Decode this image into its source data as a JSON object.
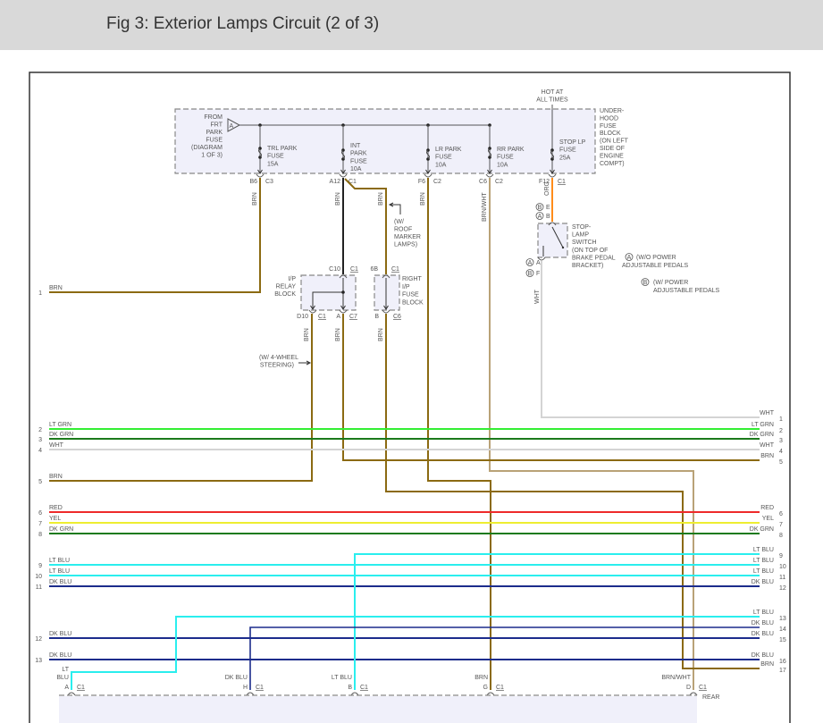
{
  "header": {
    "title": "Fig 3: Exterior Lamps Circuit (2 of 3)"
  },
  "colors": {
    "BRN": "#8b6a12",
    "BRN_WHT": "#b9a277",
    "LT_GRN": "#33ee33",
    "DK_GRN": "#1b7a1b",
    "WHT": "#d4d4d4",
    "RED": "#ee2a2a",
    "YEL": "#eeee30",
    "LT_BLU": "#2aeeee",
    "DK_BLU": "#1c2c8c",
    "ORG": "#ff8c1a",
    "BLK": "#222222",
    "block_fill": "#f0f0fa"
  },
  "fuse_block": {
    "from_label": [
      "FROM",
      "FRT",
      "PARK",
      "FUSE",
      "(DIAGRAM",
      "1 OF 3)"
    ],
    "from_connector": "A",
    "hot": [
      "HOT AT",
      "ALL TIMES"
    ],
    "block_label": [
      "UNDER-",
      "HOOD",
      "FUSE",
      "BLOCK",
      "(ON LEFT",
      "SIDE OF",
      "ENGINE",
      "COMPT)"
    ],
    "fuses": [
      {
        "label": [
          "TRL PARK",
          "FUSE",
          "15A"
        ],
        "pin": "B6",
        "conn": "C3",
        "wire": "BRN"
      },
      {
        "label": [
          "INT",
          "PARK",
          "FUSE",
          "10A"
        ],
        "pin": "A12",
        "conn": "C1",
        "wire": "BRN"
      },
      {
        "label": [
          "LR PARK",
          "FUSE",
          "10A"
        ],
        "pin": "F6",
        "conn": "C2",
        "wire": "BRN"
      },
      {
        "label": [
          "RR PARK",
          "FUSE",
          "10A"
        ],
        "pin": "C6",
        "conn": "C2",
        "wire": "BRN/WHT"
      },
      {
        "label": [
          "STOP LP",
          "FUSE",
          "25A"
        ],
        "pin": "F12",
        "conn": "C1",
        "wire": "ORG"
      }
    ]
  },
  "roof_note": [
    "(W/",
    "ROOF",
    "MARKER",
    "LAMPS)"
  ],
  "roof_wire": "BRN",
  "relay_block": {
    "label": [
      "I/P",
      "RELAY",
      "BLOCK"
    ],
    "in_pin": "C10",
    "in_conn": "C1",
    "out1_pin": "D10",
    "out1_conn": "C1",
    "out2_pin": "A",
    "out2_conn": "C7",
    "out1_wire": "BRN",
    "out2_wire": "BRN"
  },
  "right_ip_block": {
    "label": [
      "RIGHT",
      "I/P",
      "FUSE",
      "BLOCK"
    ],
    "in_pin": "6B",
    "in_conn": "C1",
    "out_pin": "B",
    "out_conn": "C6",
    "out_wire": "BRN"
  },
  "four_wheel_note": [
    "(W/ 4-WHEEL",
    "STEERING)"
  ],
  "stop_switch": {
    "label": [
      "STOP-",
      "LAMP",
      "SWITCH",
      "(ON TOP OF",
      "BRAKE PEDAL",
      "BRACKET)"
    ],
    "in_pins": [
      {
        "circle": "B",
        "pin": "E"
      },
      {
        "circle": "A",
        "pin": "B"
      }
    ],
    "out_pins": [
      {
        "circle": "A",
        "pin": "A"
      },
      {
        "circle": "B",
        "pin": "F"
      }
    ],
    "out_wire": "WHT"
  },
  "legend": [
    {
      "circle": "A",
      "lines": [
        "(W/O POWER",
        "ADJUSTABLE PEDALS"
      ]
    },
    {
      "circle": "B",
      "lines": [
        "(W/ POWER",
        "ADJUSTABLE PEDALS"
      ]
    }
  ],
  "left_wires": [
    {
      "num": "1",
      "label": "BRN"
    },
    {
      "num": "2",
      "label": "LT GRN"
    },
    {
      "num": "3",
      "label": "DK GRN"
    },
    {
      "num": "4",
      "label": "WHT"
    },
    {
      "num": "5",
      "label": "BRN"
    },
    {
      "num": "6",
      "label": "RED"
    },
    {
      "num": "7",
      "label": "YEL"
    },
    {
      "num": "8",
      "label": "DK GRN"
    },
    {
      "num": "9",
      "label": "LT BLU"
    },
    {
      "num": "10",
      "label": "LT BLU"
    },
    {
      "num": "11",
      "label": "DK BLU"
    },
    {
      "num": "12",
      "label": "DK BLU"
    },
    {
      "num": "13",
      "label": "DK BLU"
    }
  ],
  "right_wires": [
    {
      "num": "1",
      "label": "WHT"
    },
    {
      "num": "2",
      "label": "LT GRN"
    },
    {
      "num": "3",
      "label": "DK GRN"
    },
    {
      "num": "4",
      "label": "WHT"
    },
    {
      "num": "5",
      "label": "BRN"
    },
    {
      "num": "6",
      "label": "RED"
    },
    {
      "num": "7",
      "label": "YEL"
    },
    {
      "num": "8",
      "label": "DK GRN"
    },
    {
      "num": "9",
      "label": "LT BLU"
    },
    {
      "num": "10",
      "label": "LT BLU"
    },
    {
      "num": "11",
      "label": "LT BLU"
    },
    {
      "num": "12",
      "label": "DK BLU"
    },
    {
      "num": "13",
      "label": "LT BLU"
    },
    {
      "num": "14",
      "label": "DK BLU"
    },
    {
      "num": "15",
      "label": "DK BLU"
    },
    {
      "num": "16",
      "label": "DK BLU"
    },
    {
      "num": "17",
      "label": "BRN"
    }
  ],
  "bottom_connectors": [
    {
      "wire": [
        "LT",
        "BLU"
      ],
      "pin": "A",
      "conn": "C1"
    },
    {
      "wire": [
        "DK BLU"
      ],
      "pin": "H",
      "conn": "C1"
    },
    {
      "wire": [
        "LT BLU"
      ],
      "pin": "B",
      "conn": "C1"
    },
    {
      "wire": [
        "BRN"
      ],
      "pin": "G",
      "conn": "C1"
    },
    {
      "wire": [
        "BRN/WHT"
      ],
      "pin": "D",
      "conn": "C1"
    }
  ],
  "bottom_block_label": "REAR"
}
